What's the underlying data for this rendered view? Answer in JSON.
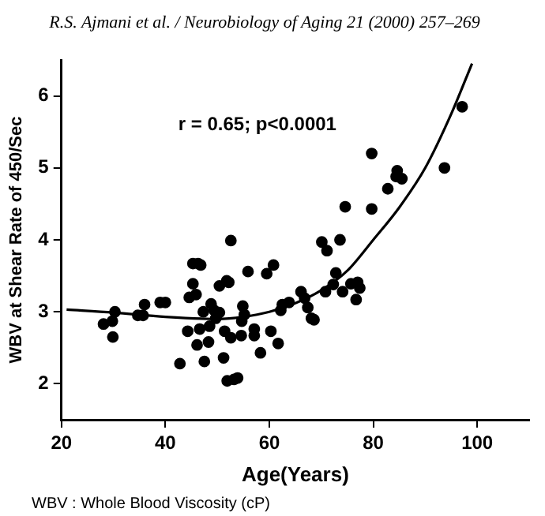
{
  "chart_data": {
    "type": "scatter",
    "xlabel": "Age(Years)",
    "ylabel": "WBV at Shear Rate of 450/Sec",
    "annotations": [
      "R.S. Ajmani et al. / Neurobiology of Aging 21 (2000) 257–269",
      "r = 0.65; p<0.0001",
      "WBV : Whole Blood Viscosity (cP)"
    ],
    "xlim": [
      20,
      110
    ],
    "xticks": [
      20,
      40,
      60,
      80,
      100
    ],
    "ylim": [
      1.5,
      6.5
    ],
    "yticks": [
      2,
      3,
      4,
      5,
      6
    ],
    "grid": false,
    "legend": false,
    "marker": "circle",
    "series": [
      {
        "color": "#000000",
        "x": [
          28.1,
          29.8,
          29.9,
          30.3,
          34.7,
          35.7,
          36,
          39,
          40,
          42.8,
          44.3,
          44.6,
          45.3,
          45.3,
          45.9,
          46.3,
          46.8,
          46.1,
          46.6,
          47.3,
          47.5,
          48.3,
          48.5,
          48.8,
          49.4,
          49.7,
          50.4,
          50.4,
          51.2,
          51.4,
          51.8,
          52.2,
          51.9,
          52.6,
          52.6,
          53.2,
          53.9,
          54.6,
          54.7,
          54.9,
          55.2,
          55.9,
          57.1,
          57.1,
          58.3,
          59.5,
          60.3,
          60.8,
          61.7,
          62.2,
          62.5,
          63.8,
          66.1,
          66.8,
          67.4,
          68.1,
          68.6,
          70.1,
          70.8,
          71.1,
          72.3,
          72.8,
          73.6,
          74.1,
          75.7,
          76.7,
          77,
          77.4,
          74.6,
          79.7,
          79.7,
          82.8,
          84.6,
          84.4,
          85.5,
          93.7,
          97.1
        ],
        "values": [
          2.83,
          2.87,
          2.65,
          3.0,
          2.95,
          2.95,
          3.1,
          3.13,
          3.13,
          2.28,
          2.73,
          3.2,
          3.39,
          3.67,
          3.24,
          3.67,
          3.65,
          2.54,
          2.76,
          3.0,
          2.31,
          2.58,
          2.8,
          3.11,
          3.02,
          2.91,
          2.99,
          3.36,
          2.36,
          2.73,
          3.43,
          3.41,
          2.04,
          3.99,
          2.64,
          2.06,
          2.08,
          2.67,
          2.87,
          3.08,
          2.96,
          3.56,
          2.76,
          2.67,
          2.43,
          3.53,
          2.73,
          3.65,
          2.56,
          3.02,
          3.1,
          3.13,
          3.28,
          3.19,
          3.06,
          2.91,
          2.89,
          3.97,
          3.28,
          3.85,
          3.38,
          3.54,
          4.0,
          3.28,
          3.39,
          3.17,
          3.41,
          3.33,
          4.46,
          5.2,
          4.43,
          4.71,
          4.96,
          4.88,
          4.85,
          5.0,
          5.85
        ]
      },
      {
        "type": "line",
        "color": "#000000",
        "marker": "none",
        "x": [
          21,
          30,
          40,
          50,
          55,
          60,
          65,
          70,
          75,
          80,
          85,
          90,
          95,
          99
        ],
        "values": [
          3.03,
          2.99,
          2.93,
          2.9,
          2.93,
          3.0,
          3.12,
          3.3,
          3.57,
          4.0,
          4.45,
          5.0,
          5.75,
          6.45
        ]
      }
    ]
  }
}
